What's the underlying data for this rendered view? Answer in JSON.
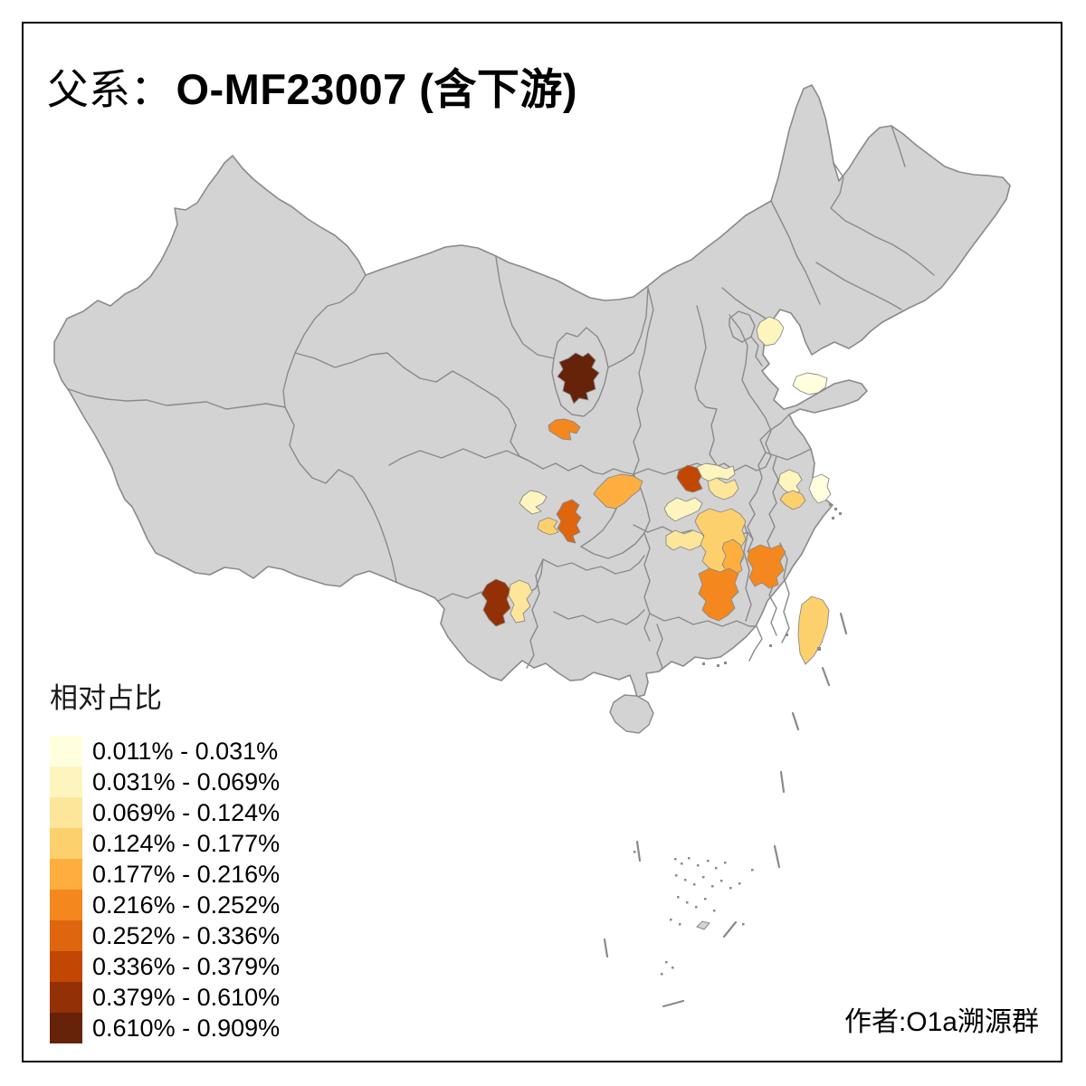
{
  "title": {
    "prefix": "父系：",
    "main": "O-MF23007 (含下游)",
    "full_text": "父系： O-MF23007 (含下游)"
  },
  "legend": {
    "title": "相对占比",
    "classes": [
      {
        "label": "0.011% - 0.031%",
        "color": "#FFFFDE"
      },
      {
        "label": "0.031% - 0.069%",
        "color": "#FEF5BE"
      },
      {
        "label": "0.069% - 0.124%",
        "color": "#FDE59A"
      },
      {
        "label": "0.124% - 0.177%",
        "color": "#FDD06E"
      },
      {
        "label": "0.177% - 0.216%",
        "color": "#FDAE3F"
      },
      {
        "label": "0.216% - 0.252%",
        "color": "#F4871E"
      },
      {
        "label": "0.252% - 0.336%",
        "color": "#DF650E"
      },
      {
        "label": "0.336% - 0.379%",
        "color": "#C14702"
      },
      {
        "label": "0.379% - 0.610%",
        "color": "#933005"
      },
      {
        "label": "0.610% - 0.909%",
        "color": "#67220A"
      }
    ]
  },
  "attribution": "作者:O1a溯源群",
  "map": {
    "land_color": "#D3D3D3",
    "boundary_color": "#8a8a8a",
    "background_color": "#FFFFFF",
    "frame_color": "#000000",
    "regions": [
      {
        "id": "langfang",
        "class": 2
      },
      {
        "id": "shandong-east",
        "class": 1
      },
      {
        "id": "ningxia",
        "class": 10
      },
      {
        "id": "lanzhou",
        "class": 6
      },
      {
        "id": "west-sichuan",
        "class": 2
      },
      {
        "id": "chengdu",
        "class": 7
      },
      {
        "id": "leshan",
        "class": 4
      },
      {
        "id": "ne-sichuan",
        "class": 5
      },
      {
        "id": "xiangyang",
        "class": 8
      },
      {
        "id": "hubei-north",
        "class": 2
      },
      {
        "id": "hubei-east",
        "class": 3
      },
      {
        "id": "jingzhou",
        "class": 2
      },
      {
        "id": "changde",
        "class": 3
      },
      {
        "id": "hunan-ne",
        "class": 4
      },
      {
        "id": "hunan-mid",
        "class": 5
      },
      {
        "id": "hunan-south",
        "class": 6
      },
      {
        "id": "jiangxi-west",
        "class": 6
      },
      {
        "id": "anhui-south",
        "class": 2
      },
      {
        "id": "huzhou",
        "class": 4
      },
      {
        "id": "suzhou-shanghai",
        "class": 1
      },
      {
        "id": "chuxiong",
        "class": 9
      },
      {
        "id": "kunming",
        "class": 3
      },
      {
        "id": "taiwan",
        "class": 4
      }
    ]
  },
  "chart_data": {
    "type": "choropleth_map",
    "title": "父系： O-MF23007 (含下游)",
    "legend_title": "相对占比",
    "bins": [
      "0.011% - 0.031%",
      "0.031% - 0.069%",
      "0.069% - 0.124%",
      "0.124% - 0.177%",
      "0.177% - 0.216%",
      "0.216% - 0.252%",
      "0.252% - 0.336%",
      "0.336% - 0.379%",
      "0.379% - 0.610%",
      "0.610% - 0.909%"
    ],
    "colors": [
      "#FFFFDE",
      "#FEF5BE",
      "#FDE59A",
      "#FDD06E",
      "#FDAE3F",
      "#F4871E",
      "#DF650E",
      "#C14702",
      "#933005",
      "#67220A"
    ],
    "region_bin_index": {
      "langfang": 2,
      "shandong-east": 1,
      "ningxia": 10,
      "lanzhou": 6,
      "west-sichuan": 2,
      "chengdu": 7,
      "leshan": 4,
      "ne-sichuan": 5,
      "xiangyang": 8,
      "hubei-north": 2,
      "hubei-east": 3,
      "jingzhou": 2,
      "changde": 3,
      "hunan-ne": 4,
      "hunan-mid": 5,
      "hunan-south": 6,
      "jiangxi-west": 6,
      "anhui-south": 2,
      "huzhou": 4,
      "suzhou-shanghai": 1,
      "chuxiong": 9,
      "kunming": 3,
      "taiwan": 4
    }
  }
}
